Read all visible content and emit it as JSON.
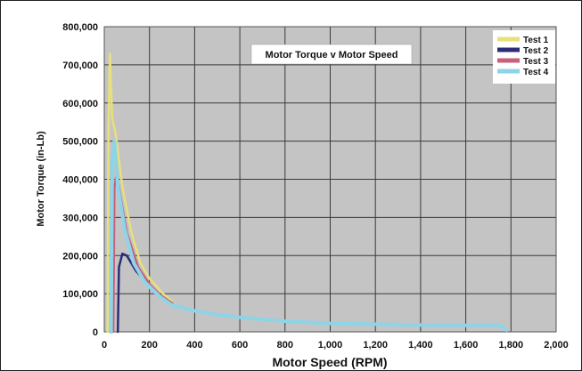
{
  "chart_data": {
    "type": "line",
    "title": "Motor Torque v Motor Speed",
    "xlabel": "Motor Speed (RPM)",
    "ylabel": "Motor Torque (in-Lb)",
    "xlim": [
      0,
      2000
    ],
    "ylim": [
      0,
      800000
    ],
    "x_ticks": [
      "0",
      "200",
      "400",
      "600",
      "800",
      "1,000",
      "1,200",
      "1,400",
      "1,600",
      "1,800",
      "2,000"
    ],
    "y_ticks": [
      "0",
      "100,000",
      "200,000",
      "300,000",
      "400,000",
      "500,000",
      "600,000",
      "700,000",
      "800,000"
    ],
    "grid": true,
    "legend_position": "top-right",
    "plot_background": "#c4c4c4",
    "series": [
      {
        "name": "Test 1",
        "color": "#e8e07a",
        "points": [
          [
            15,
            0
          ],
          [
            18,
            500000
          ],
          [
            25,
            730000
          ],
          [
            35,
            560000
          ],
          [
            50,
            520000
          ],
          [
            80,
            380000
          ],
          [
            120,
            260000
          ],
          [
            160,
            180000
          ],
          [
            200,
            140000
          ],
          [
            260,
            100000
          ],
          [
            300,
            80000
          ]
        ]
      },
      {
        "name": "Test 2",
        "color": "#2c2c7a",
        "points": [
          [
            60,
            0
          ],
          [
            65,
            170000
          ],
          [
            80,
            205000
          ],
          [
            100,
            200000
          ],
          [
            140,
            160000
          ],
          [
            200,
            120000
          ],
          [
            250,
            95000
          ],
          [
            300,
            75000
          ]
        ]
      },
      {
        "name": "Test 3",
        "color": "#c8607a",
        "points": [
          [
            40,
            0
          ],
          [
            45,
            380000
          ],
          [
            55,
            415000
          ],
          [
            70,
            360000
          ],
          [
            100,
            260000
          ],
          [
            150,
            170000
          ],
          [
            200,
            125000
          ],
          [
            250,
            95000
          ],
          [
            300,
            75000
          ]
        ]
      },
      {
        "name": "Test 4",
        "color": "#8ed4e8",
        "points": [
          [
            30,
            0
          ],
          [
            35,
            450000
          ],
          [
            45,
            500000
          ],
          [
            60,
            380000
          ],
          [
            90,
            270000
          ],
          [
            130,
            180000
          ],
          [
            180,
            130000
          ],
          [
            250,
            90000
          ],
          [
            300,
            70000
          ],
          [
            400,
            55000
          ],
          [
            500,
            45000
          ],
          [
            600,
            38000
          ],
          [
            700,
            33000
          ],
          [
            800,
            28000
          ],
          [
            900,
            25000
          ],
          [
            1000,
            22000
          ],
          [
            1200,
            20000
          ],
          [
            1400,
            18000
          ],
          [
            1600,
            17000
          ],
          [
            1750,
            18000
          ],
          [
            1780,
            5000
          ]
        ]
      }
    ]
  }
}
